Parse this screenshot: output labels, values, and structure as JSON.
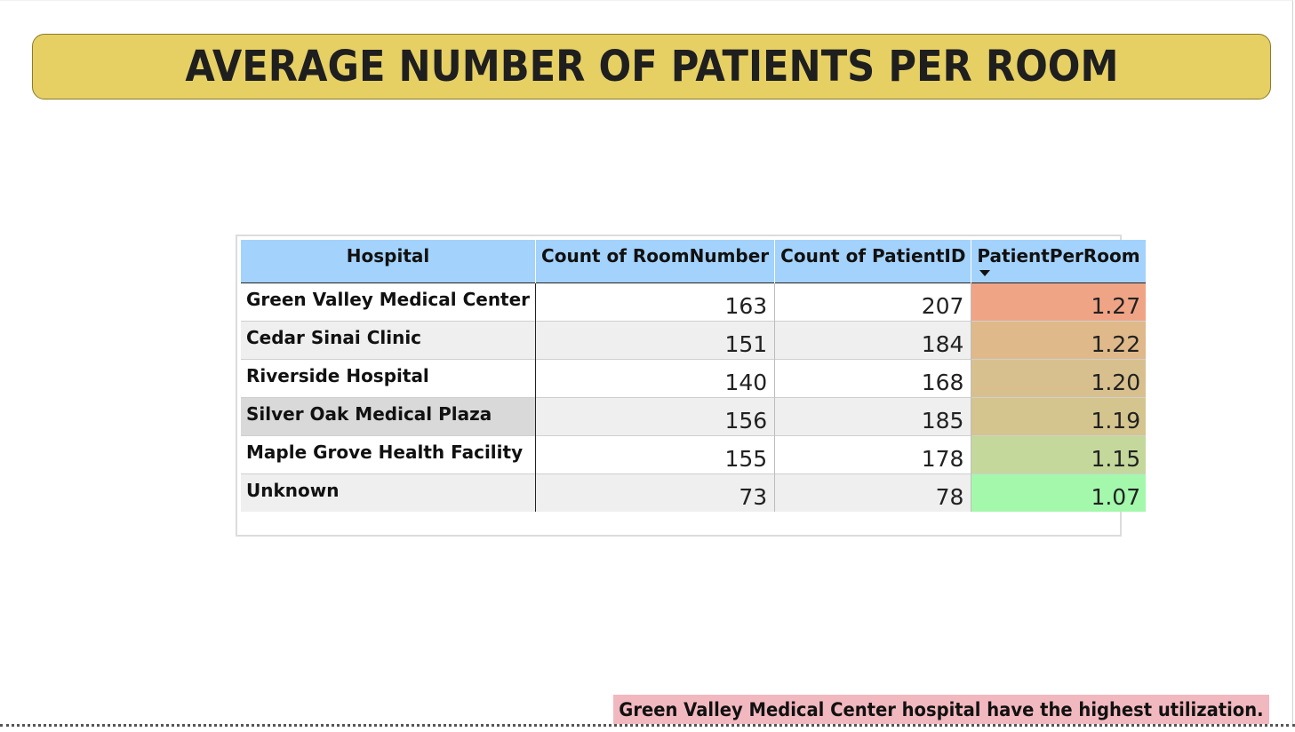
{
  "page": {
    "title": "AVERAGE NUMBER OF PATIENTS PER ROOM",
    "insight": "Green Valley Medical Center hospital have the highest utilization."
  },
  "colors": {
    "banner": "#e6d064",
    "header": "#a3d2fc",
    "insight_bg": "#f2b8bf",
    "scale_high": "#f0a486",
    "scale_low": "#a4f8ac"
  },
  "chart_data": {
    "type": "table",
    "title": "AVERAGE NUMBER OF PATIENTS PER ROOM",
    "columns": [
      "Hospital",
      "Count of RoomNumber",
      "Count of PatientID",
      "PatientPerRoom"
    ],
    "sort": {
      "column": "PatientPerRoom",
      "direction": "descending"
    },
    "rows": [
      {
        "hospital": "Green Valley Medical Center",
        "rooms": "163",
        "patients": "207",
        "ppr": "1.27",
        "color": "#f0a486"
      },
      {
        "hospital": "Cedar Sinai Clinic",
        "rooms": "151",
        "patients": "184",
        "ppr": "1.22",
        "color": "#dfb98a"
      },
      {
        "hospital": "Riverside Hospital",
        "rooms": "140",
        "patients": "168",
        "ppr": "1.20",
        "color": "#d8c08e"
      },
      {
        "hospital": "Silver Oak Medical Plaza",
        "rooms": "156",
        "patients": "185",
        "ppr": "1.19",
        "color": "#d4c58f"
      },
      {
        "hospital": "Maple Grove Health Facility",
        "rooms": "155",
        "patients": "178",
        "ppr": "1.15",
        "color": "#c4d89c"
      },
      {
        "hospital": "Unknown",
        "rooms": "73",
        "patients": "78",
        "ppr": "1.07",
        "color": "#a4f8ac"
      }
    ]
  }
}
